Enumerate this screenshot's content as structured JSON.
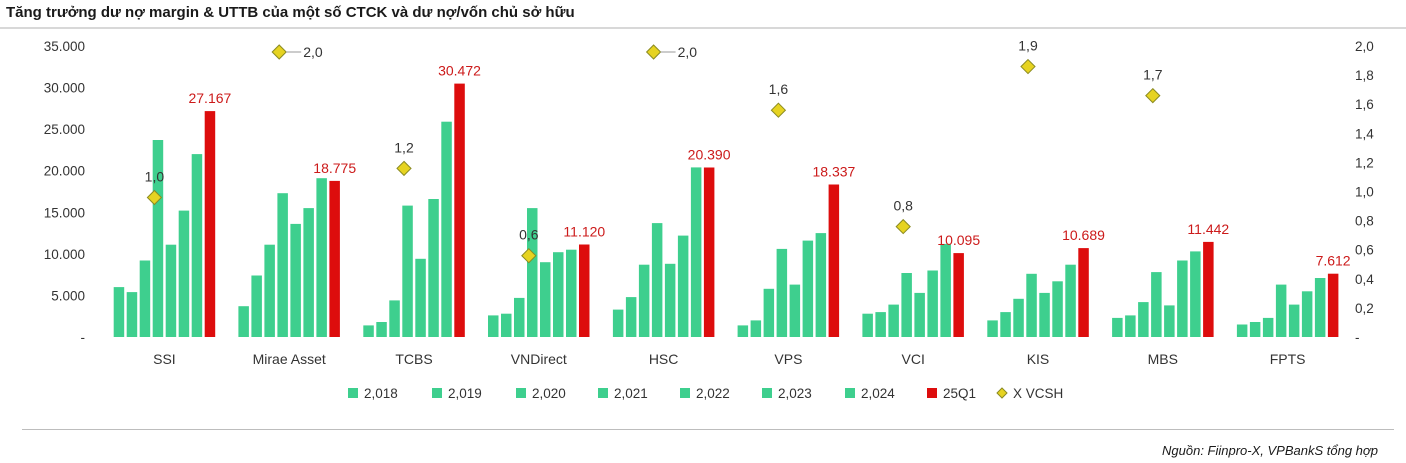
{
  "title": "Tăng trưởng dư nợ margin & UTTB của một số CTCK và dư nợ/vốn chủ sở hữu",
  "source": "Nguồn: Fiinpro-X,  VPBankS tổng hợp",
  "colors": {
    "green": "#3ecf8e",
    "red": "#dd0d0d",
    "diamond": "#e6d321",
    "diamond_stroke": "#8a8a22"
  },
  "chart_data": {
    "type": "bar",
    "categories": [
      "SSI",
      "Mirae Asset",
      "TCBS",
      "VNDirect",
      "HSC",
      "VPS",
      "VCI",
      "KIS",
      "MBS",
      "FPTS"
    ],
    "series": [
      {
        "name": "2,018",
        "values": [
          6000,
          3700,
          1400,
          2600,
          3300,
          1400,
          2800,
          2000,
          2300,
          1500
        ]
      },
      {
        "name": "2,019",
        "values": [
          5400,
          7400,
          1800,
          2800,
          4800,
          2000,
          3000,
          3000,
          2600,
          1800
        ]
      },
      {
        "name": "2,020",
        "values": [
          9200,
          11100,
          4400,
          4700,
          8700,
          5800,
          3900,
          4600,
          4200,
          2300
        ]
      },
      {
        "name": "2,021",
        "values": [
          23700,
          17300,
          15800,
          15500,
          13700,
          10600,
          7700,
          7600,
          7800,
          6300
        ]
      },
      {
        "name": "2,022",
        "values": [
          11100,
          13600,
          9400,
          9000,
          8800,
          6300,
          5300,
          5300,
          3800,
          3900
        ]
      },
      {
        "name": "2,023",
        "values": [
          15200,
          15500,
          16600,
          10200,
          12200,
          11600,
          8000,
          6700,
          9200,
          5500
        ]
      },
      {
        "name": "2,024",
        "values": [
          22000,
          19100,
          25900,
          10500,
          20400,
          12500,
          11200,
          8700,
          10300,
          7100
        ]
      },
      {
        "name": "25Q1",
        "values": [
          27167,
          18775,
          30472,
          11120,
          20390,
          18337,
          10095,
          10689,
          11442,
          7612
        ]
      }
    ],
    "q1_labels": [
      "27.167",
      "18.775",
      "30.472",
      "11.120",
      "20.390",
      "18.337",
      "10.095",
      "10.689",
      "11.442",
      "7.612"
    ],
    "ratio_series": {
      "name": "X VCSH",
      "values": [
        1.0,
        2.0,
        1.2,
        0.6,
        2.0,
        1.6,
        0.8,
        1.9,
        1.7,
        null
      ],
      "labels": [
        "1,0",
        "2,0",
        "1,2",
        "0,6",
        "2,0",
        "1,6",
        "0,8",
        "1,9",
        "1,7",
        ""
      ]
    },
    "y_left": {
      "min": 0,
      "max": 35000,
      "ticks": [
        "-",
        "5.000",
        "10.000",
        "15.000",
        "20.000",
        "25.000",
        "30.000",
        "35.000"
      ]
    },
    "y_right": {
      "min": 0,
      "max": 2.0,
      "ticks": [
        "-",
        "0,2",
        "0,4",
        "0,6",
        "0,8",
        "1,0",
        "1,2",
        "1,4",
        "1,6",
        "1,8",
        "2,0"
      ]
    },
    "legend": [
      "2,018",
      "2,019",
      "2,020",
      "2,021",
      "2,022",
      "2,023",
      "2,024",
      "25Q1",
      "X VCSH"
    ],
    "legend_position": "bottom"
  }
}
